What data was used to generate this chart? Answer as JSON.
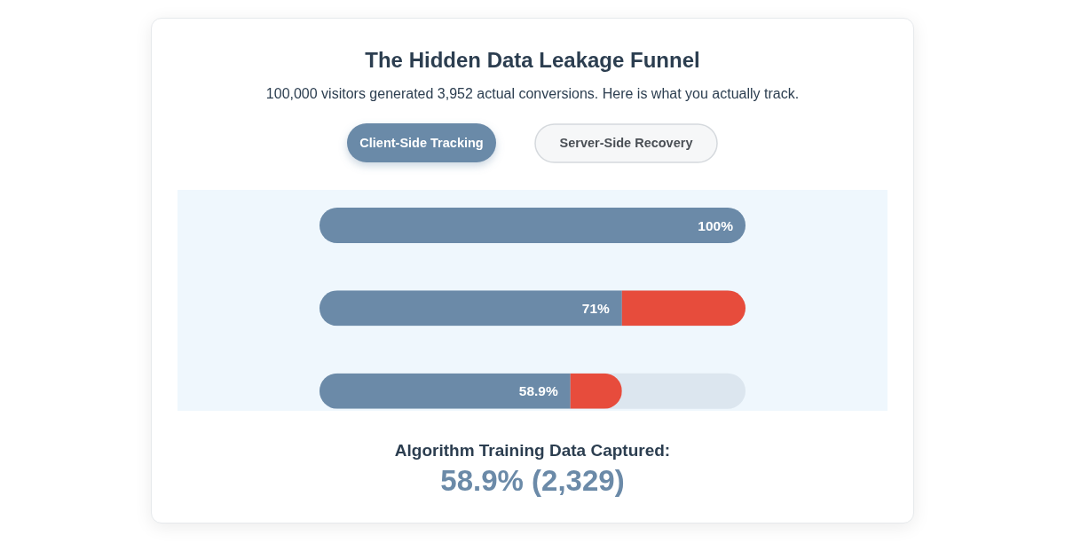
{
  "chart_data": {
    "type": "bar",
    "orientation": "horizontal",
    "stacked": true,
    "title": "The Hidden Data Leakage Funnel",
    "subtitle": "100,000 visitors generated 3,952 actual conversions. Here is what you actually track.",
    "categories": [
      null,
      null,
      null
    ],
    "series": [
      {
        "color": "#6b8aa8",
        "values": [
          100,
          71,
          58.9
        ],
        "value_labels": [
          "100%",
          "71%",
          "58.9%"
        ]
      },
      {
        "color": "#e74c3c",
        "values": [
          0,
          29,
          12.1
        ]
      }
    ],
    "xlim": [
      0,
      100
    ],
    "tick_labels": false,
    "annotations": [
      "Client-Side Tracking",
      "Server-Side Recovery",
      "Algorithm Training Data Captured:",
      "58.9% (2,329)"
    ]
  }
}
